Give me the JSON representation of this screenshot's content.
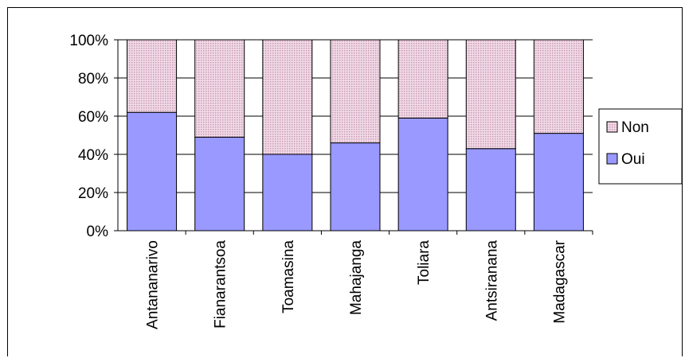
{
  "chart_data": {
    "type": "bar",
    "stacked": true,
    "percent_stacked": true,
    "categories": [
      "Antananarivo",
      "Fianarantsoa",
      "Toamasina",
      "Mahajanga",
      "Toliara",
      "Antsiranana",
      "Madagascar"
    ],
    "series": [
      {
        "name": "Oui",
        "values": [
          62,
          49,
          40,
          46,
          59,
          43,
          51
        ],
        "color": "#9999ff"
      },
      {
        "name": "Non",
        "values": [
          38,
          51,
          60,
          54,
          41,
          57,
          49
        ],
        "color": "#e8c8dc"
      }
    ],
    "ylim": [
      0,
      100
    ],
    "yticks": [
      "0%",
      "20%",
      "40%",
      "60%",
      "80%",
      "100%"
    ],
    "ytick_values": [
      0,
      20,
      40,
      60,
      80,
      100
    ],
    "grid": true,
    "legend": {
      "placement": "right",
      "entries": [
        {
          "label": "Non",
          "series": "Non"
        },
        {
          "label": "Oui",
          "series": "Oui"
        }
      ]
    }
  }
}
